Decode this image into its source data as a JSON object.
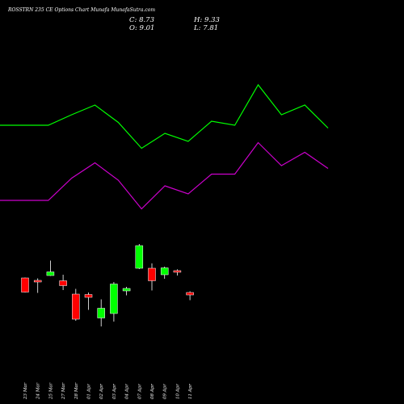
{
  "header": {
    "title": "ROSSTRN 235 CE Options Chart Munafa MunafaSutra.com",
    "close": "C: 8.73",
    "open": "O: 9.01",
    "high": "H: 9.33",
    "low": "L: 7.81"
  },
  "colors": {
    "background": "#000000",
    "up": "#00ff00",
    "down": "#ff0000",
    "upper_band": "#00ff00",
    "lower_band": "#cc00cc",
    "text": "#ffffff"
  },
  "chart_data": {
    "type": "candlestick",
    "categories": [
      "23 Mar",
      "24 Mar",
      "25 Mar",
      "27 Mar",
      "28 Mar",
      "01 Apr",
      "02 Apr",
      "03 Apr",
      "04 Apr",
      "07 Apr",
      "08 Apr",
      "09 Apr",
      "10 Apr",
      "11 Apr"
    ],
    "candles": [
      {
        "open": 7.2,
        "high": 7.3,
        "low": 3.6,
        "close": 3.7
      },
      {
        "open": 6.6,
        "high": 7.1,
        "low": 3.5,
        "close": 6.3
      },
      {
        "open": 7.8,
        "high": 11.5,
        "low": 7.7,
        "close": 8.7
      },
      {
        "open": 6.5,
        "high": 8.0,
        "low": 4.2,
        "close": 5.3
      },
      {
        "open": 3.2,
        "high": 4.5,
        "low": -3.4,
        "close": -3.0
      },
      {
        "open": 3.1,
        "high": 3.6,
        "low": -0.7,
        "close": 2.4
      },
      {
        "open": -2.7,
        "high": 1.9,
        "low": -4.8,
        "close": -0.3
      },
      {
        "open": -1.6,
        "high": 6.2,
        "low": -3.6,
        "close": 5.7
      },
      {
        "open": 4.0,
        "high": 5.0,
        "low": 2.9,
        "close": 4.6
      },
      {
        "open": 9.6,
        "high": 15.6,
        "low": 9.4,
        "close": 15.2
      },
      {
        "open": 9.6,
        "high": 10.8,
        "low": 4.1,
        "close": 6.5
      },
      {
        "open": 8.0,
        "high": 10.0,
        "low": 7.0,
        "close": 9.7
      },
      {
        "open": 9.01,
        "high": 9.33,
        "low": 7.81,
        "close": 8.73
      },
      {
        "open": 3.6,
        "high": 3.9,
        "low": 1.7,
        "close": 3.0
      }
    ],
    "upper_line": [
      45.0,
      45.0,
      47.6,
      50.0,
      45.7,
      39.3,
      43.0,
      41.0,
      46.0,
      45.0,
      55.0,
      47.6,
      50.0,
      44.3
    ],
    "lower_line": [
      26.4,
      26.4,
      31.9,
      35.7,
      31.4,
      24.3,
      30.0,
      28.0,
      32.9,
      32.9,
      40.7,
      35.0,
      38.3,
      34.3
    ],
    "ylim": [
      -10,
      68
    ],
    "grid": false,
    "legend": "none"
  }
}
